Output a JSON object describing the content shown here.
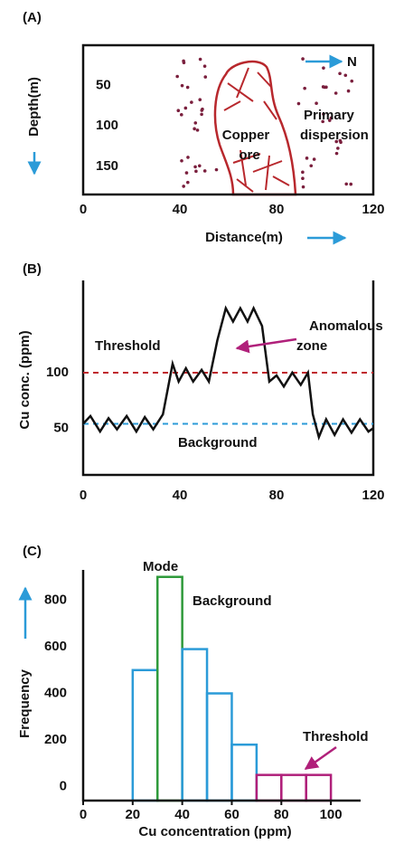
{
  "chart_data": [
    {
      "type": "cross-section",
      "panel": "(A)",
      "xlabel": "Distance(m)",
      "ylabel": "Depth(m)",
      "xlim": [
        0,
        120
      ],
      "xticks": [
        0,
        40,
        80,
        120
      ],
      "ylim": [
        0,
        185
      ],
      "y_inverted": true,
      "yticks": [
        50,
        100,
        150
      ],
      "north_label": "N",
      "ore_label": [
        "Copper",
        "ore"
      ],
      "halo_label": [
        "Primary",
        "dispersion"
      ],
      "ore_color": "#b8282d",
      "dot_color": "#7a1f3d",
      "arrow_color": "#2b9bd8"
    },
    {
      "type": "line",
      "panel": "(B)",
      "ylabel": "Cu conc. (ppm)",
      "xlim": [
        0,
        120
      ],
      "xticks": [
        0,
        40,
        80,
        120
      ],
      "ylim": [
        8,
        183
      ],
      "yticks": [
        50,
        100
      ],
      "x": [
        0,
        3,
        7,
        10.5,
        14,
        18,
        22,
        25.5,
        29,
        33,
        37,
        39.5,
        42.5,
        45.5,
        49,
        52,
        55.5,
        59,
        62,
        65,
        68,
        70.5,
        74,
        77,
        80,
        83,
        86.5,
        90,
        93,
        95,
        97.5,
        100.5,
        104,
        107.5,
        111,
        114.5,
        118,
        120
      ],
      "values": [
        54,
        61,
        47,
        59,
        49,
        61,
        47,
        60,
        49,
        62.5,
        108,
        92,
        104,
        92,
        102.5,
        92,
        129,
        158,
        146,
        158,
        146,
        158,
        142,
        92,
        97.5,
        87.5,
        100,
        89,
        100,
        62.5,
        42,
        58,
        44,
        58,
        46,
        58,
        47,
        50
      ],
      "color": "#111111",
      "reference_lines": [
        {
          "label": "Threshold",
          "value": 100,
          "color": "#c0282d"
        },
        {
          "label": "Background",
          "value": 54,
          "color": "#2b9bd8"
        }
      ],
      "annotation": [
        "Anomalous",
        "zone"
      ],
      "annotation_color": "#b8282d",
      "arrow_color": "#b0207a"
    },
    {
      "type": "histogram",
      "panel": "(C)",
      "xlabel": "Cu concentration (ppm)",
      "ylabel": "Frequency",
      "bins": [
        20,
        30,
        40,
        50,
        60,
        70,
        80,
        90,
        100
      ],
      "values": [
        500,
        900,
        590,
        400,
        180,
        50,
        50,
        50
      ],
      "colors": [
        "#2b9bd8",
        "#2e9a3a",
        "#2b9bd8",
        "#2b9bd8",
        "#2b9bd8",
        "#b0207a",
        "#b0207a",
        "#b0207a"
      ],
      "xlim": [
        0,
        112
      ],
      "xticks": [
        0,
        20,
        40,
        60,
        80,
        100
      ],
      "ylim": [
        -60,
        930
      ],
      "yticks": [
        0,
        200,
        400,
        600,
        800
      ],
      "annotations": [
        {
          "text": "Mode",
          "color": "#2e9a3a"
        },
        {
          "text": "Background",
          "color": "#2b9bd8"
        },
        {
          "text": "Threshold",
          "color": "#b0207a"
        }
      ],
      "arrow_color": "#2b9bd8",
      "threshold_arrow_color": "#b0207a"
    }
  ]
}
